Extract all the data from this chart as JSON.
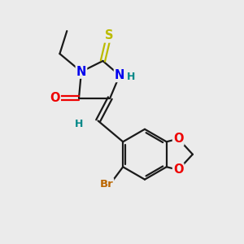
{
  "bg_color": "#ebebeb",
  "bond_color": "#1a1a1a",
  "bond_width": 1.6,
  "atom_colors": {
    "N": "#0000ee",
    "O": "#ee0000",
    "S": "#bbbb00",
    "Br": "#bb6600",
    "H": "#008888",
    "C": "#1a1a1a"
  },
  "font_size": 10.5
}
